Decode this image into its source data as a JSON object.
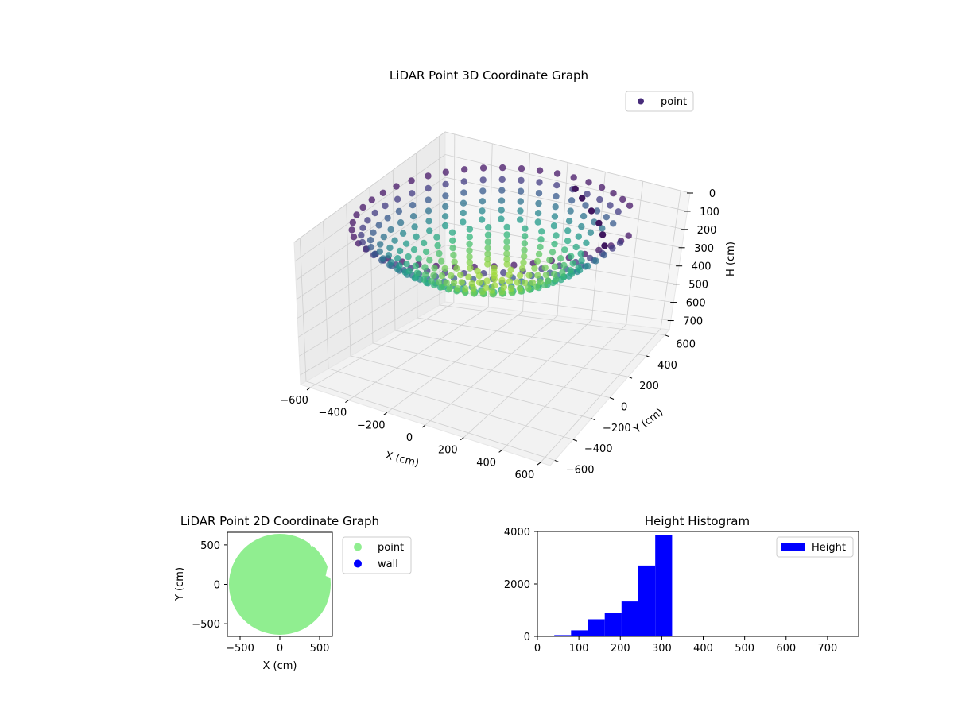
{
  "chart_data": [
    {
      "type": "scatter",
      "projection": "3d",
      "title": "LiDAR Point 3D Coordinate Graph",
      "xlabel": "X (cm)",
      "ylabel": "Y (cm)",
      "zlabel": "H (cm)",
      "xlim": [
        -650,
        650
      ],
      "ylim": [
        -650,
        650
      ],
      "zlim": [
        750,
        0
      ],
      "z_inverted": true,
      "xticks": [
        -600,
        -400,
        -200,
        0,
        200,
        400,
        600
      ],
      "yticks": [
        -600,
        -400,
        -200,
        0,
        200,
        400,
        600
      ],
      "zticks": [
        0,
        100,
        200,
        300,
        400,
        500,
        600,
        700
      ],
      "grid": true,
      "legend": {
        "position": "top-right",
        "entries": [
          "point"
        ]
      },
      "series": [
        {
          "name": "point",
          "colormap": "viridis",
          "description_points": [
            {
              "x": 0,
              "y": 0,
              "h": 320
            },
            {
              "x": 150,
              "y": 100,
              "h": 310
            },
            {
              "x": -200,
              "y": -150,
              "h": 300
            },
            {
              "x": 300,
              "y": -200,
              "h": 280
            },
            {
              "x": -400,
              "y": 200,
              "h": 250
            },
            {
              "x": 500,
              "y": 300,
              "h": 120
            },
            {
              "x": -550,
              "y": -300,
              "h": 200
            },
            {
              "x": 200,
              "y": 550,
              "h": 50
            },
            {
              "x": -100,
              "y": 600,
              "h": 60
            },
            {
              "x": 450,
              "y": -450,
              "h": 150
            },
            {
              "x": -300,
              "y": -550,
              "h": 180
            },
            {
              "x": 600,
              "y": 0,
              "h": 100
            }
          ]
        }
      ]
    },
    {
      "type": "scatter",
      "title": "LiDAR Point 2D Coordinate Graph",
      "xlabel": "X (cm)",
      "ylabel": "Y (cm)",
      "xlim": [
        -660,
        660
      ],
      "ylim": [
        -660,
        660
      ],
      "xticks": [
        -500,
        0,
        500
      ],
      "yticks": [
        -500,
        0,
        500
      ],
      "legend": {
        "position": "outside-right",
        "entries": [
          "point",
          "wall"
        ]
      },
      "series": [
        {
          "name": "point",
          "color": "#90ee90",
          "shape": "disk",
          "radius": 640,
          "center": [
            0,
            0
          ]
        },
        {
          "name": "wall",
          "color": "#0000ff",
          "values": []
        }
      ]
    },
    {
      "type": "bar",
      "subtype": "histogram",
      "title": "Height Histogram",
      "xlim": [
        0,
        775
      ],
      "ylim": [
        0,
        4000
      ],
      "xticks": [
        0,
        100,
        200,
        300,
        400,
        500,
        600,
        700
      ],
      "yticks": [
        0,
        2000,
        4000
      ],
      "legend": {
        "position": "top-right",
        "entries": [
          "Height"
        ]
      },
      "color": "#0000ff",
      "bin_edges": [
        0,
        40.6,
        81.2,
        121.8,
        162.4,
        203.0,
        243.6,
        284.2,
        324.8
      ],
      "series": [
        {
          "name": "Height",
          "values": [
            30,
            50,
            230,
            650,
            900,
            1330,
            2700,
            3880
          ]
        }
      ]
    }
  ]
}
